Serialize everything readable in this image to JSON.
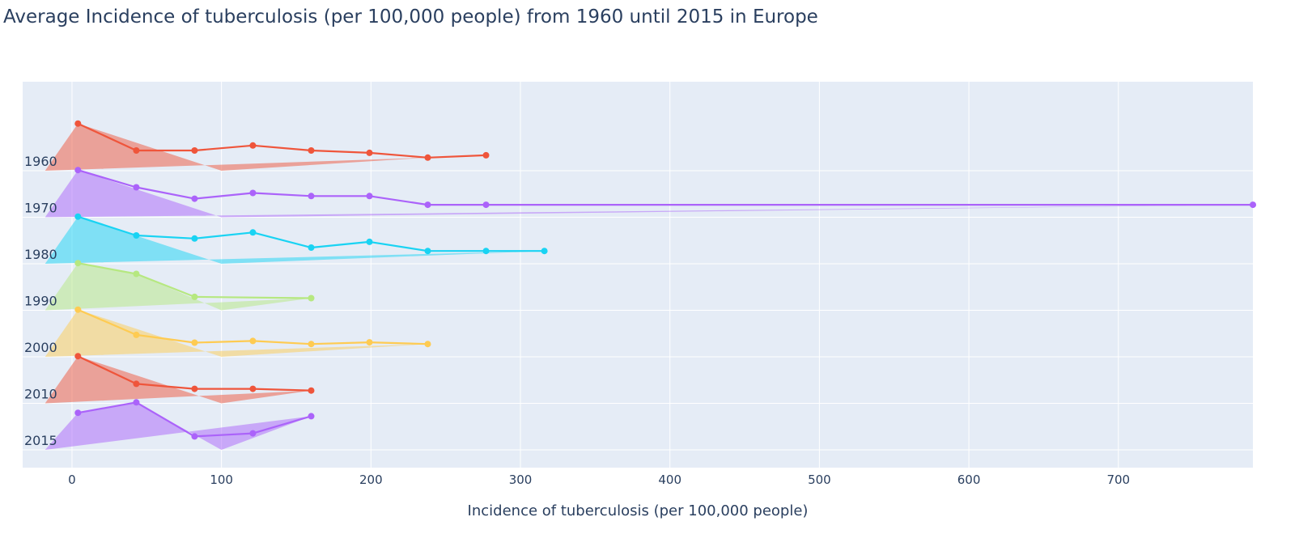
{
  "chart_data": {
    "type": "area",
    "title": "Average Incidence of tuberculosis (per 100,000 people) from 1960 until 2015 in Europe",
    "xlabel": "Incidence of tuberculosis (per 100,000 people)",
    "ylabel": "",
    "xlim": [
      -33,
      790
    ],
    "x_ticks": [
      0,
      100,
      200,
      300,
      400,
      500,
      600,
      700
    ],
    "grid": true,
    "legend": "none",
    "plot_bg": "#e5ecf6",
    "grid_color": "#ffffff",
    "categories": [
      "1960",
      "1970",
      "1980",
      "1990",
      "2000",
      "2010",
      "2015"
    ],
    "series": [
      {
        "category": "1960",
        "color": "#EF553B",
        "line": [
          [
            4,
            1.4
          ],
          [
            43,
            0.6
          ],
          [
            82,
            0.6
          ],
          [
            121,
            0.75
          ],
          [
            160,
            0.6
          ],
          [
            199,
            0.53
          ],
          [
            238,
            0.39
          ],
          [
            277,
            0.46
          ]
        ],
        "fill": [
          [
            -18,
            0
          ],
          [
            4,
            1.4
          ],
          [
            100,
            0
          ],
          [
            238,
            0.39
          ]
        ]
      },
      {
        "category": "1970",
        "color": "#AB63FA",
        "line": [
          [
            4,
            1.4
          ],
          [
            43,
            0.89
          ],
          [
            82,
            0.55
          ],
          [
            121,
            0.72
          ],
          [
            160,
            0.63
          ],
          [
            199,
            0.63
          ],
          [
            238,
            0.37
          ],
          [
            277,
            0.37
          ],
          [
            790,
            0.37
          ]
        ],
        "fill": [
          [
            -18,
            0
          ],
          [
            4,
            1.4
          ],
          [
            100,
            0
          ],
          [
            790,
            0.37
          ]
        ]
      },
      {
        "category": "1980",
        "color": "#19D3F3",
        "line": [
          [
            4,
            1.4
          ],
          [
            43,
            0.84
          ],
          [
            82,
            0.75
          ],
          [
            121,
            0.93
          ],
          [
            160,
            0.48
          ],
          [
            199,
            0.65
          ],
          [
            238,
            0.38
          ],
          [
            277,
            0.38
          ],
          [
            316,
            0.38
          ]
        ],
        "fill": [
          [
            -18,
            0
          ],
          [
            4,
            1.4
          ],
          [
            100,
            0
          ],
          [
            316,
            0.38
          ]
        ]
      },
      {
        "category": "1990",
        "color": "#B6E880",
        "line": [
          [
            4,
            1.4
          ],
          [
            43,
            1.08
          ],
          [
            82,
            0.4
          ],
          [
            160,
            0.36
          ]
        ],
        "fill": [
          [
            -18,
            0
          ],
          [
            4,
            1.4
          ],
          [
            43,
            1.08
          ],
          [
            100,
            0
          ],
          [
            160,
            0.36
          ]
        ]
      },
      {
        "category": "2000",
        "color": "#FECB52",
        "line": [
          [
            4,
            1.4
          ],
          [
            43,
            0.65
          ],
          [
            82,
            0.42
          ],
          [
            121,
            0.47
          ],
          [
            160,
            0.38
          ],
          [
            199,
            0.43
          ],
          [
            238,
            0.38
          ]
        ],
        "fill": [
          [
            -18,
            0
          ],
          [
            4,
            1.4
          ],
          [
            100,
            0
          ],
          [
            238,
            0.38
          ]
        ]
      },
      {
        "category": "2010",
        "color": "#EF553B",
        "line": [
          [
            4,
            1.4
          ],
          [
            43,
            0.58
          ],
          [
            82,
            0.43
          ],
          [
            121,
            0.43
          ],
          [
            160,
            0.38
          ]
        ],
        "fill": [
          [
            -18,
            0
          ],
          [
            4,
            1.4
          ],
          [
            100,
            0
          ],
          [
            160,
            0.38
          ]
        ]
      },
      {
        "category": "2015",
        "color": "#AB63FA",
        "line": [
          [
            4,
            1.1
          ],
          [
            43,
            1.41
          ],
          [
            82,
            0.4
          ],
          [
            121,
            0.49
          ],
          [
            160,
            1.0
          ]
        ],
        "fill": [
          [
            -18,
            0
          ],
          [
            4,
            1.1
          ],
          [
            43,
            1.41
          ],
          [
            100,
            0
          ],
          [
            160,
            1.0
          ]
        ]
      }
    ]
  }
}
